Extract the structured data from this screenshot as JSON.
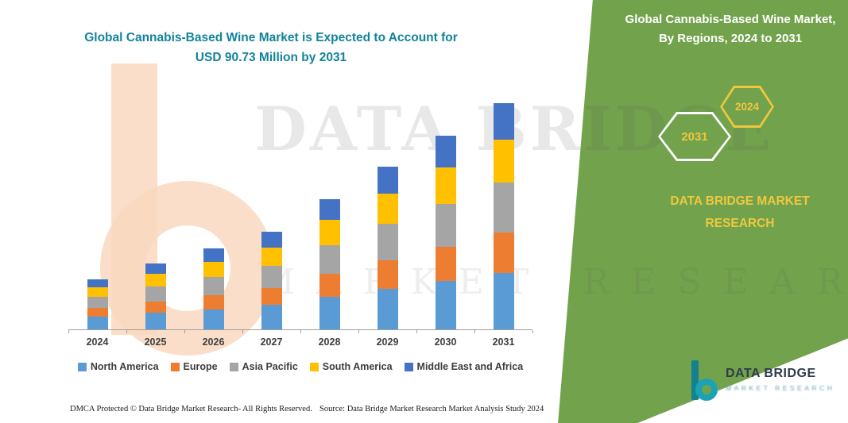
{
  "left": {
    "title_line1": "Global Cannabis-Based Wine Market is Expected to Account for",
    "title_line2": "USD 90.73 Million by 2031"
  },
  "chart_data": {
    "type": "bar",
    "stacked": true,
    "unit": "USD Million",
    "categories": [
      "2024",
      "2025",
      "2026",
      "2027",
      "2028",
      "2029",
      "2030",
      "2031"
    ],
    "series": [
      {
        "name": "North America",
        "color": "#5B9BD5",
        "values": [
          5.0,
          6.6,
          8.1,
          9.8,
          13.0,
          16.3,
          19.4,
          22.7
        ]
      },
      {
        "name": "Europe",
        "color": "#ED7D31",
        "values": [
          3.5,
          4.6,
          5.7,
          6.9,
          9.2,
          11.5,
          13.6,
          16.0
        ]
      },
      {
        "name": "Asia Pacific",
        "color": "#A5A5A5",
        "values": [
          4.5,
          5.9,
          7.2,
          8.7,
          11.6,
          14.4,
          17.2,
          20.0
        ]
      },
      {
        "name": "South America",
        "color": "#FFC000",
        "values": [
          3.8,
          5.0,
          6.1,
          7.4,
          9.9,
          12.3,
          14.7,
          17.2
        ]
      },
      {
        "name": "Middle East and Africa",
        "color": "#4472C4",
        "values": [
          3.2,
          4.4,
          5.3,
          6.4,
          8.5,
          10.6,
          12.6,
          14.8
        ]
      }
    ],
    "title": "Global Cannabis-Based Wine Market is Expected to Account for USD 90.73 Million by 2031",
    "xlabel": "",
    "ylabel": "",
    "ylim": [
      0,
      95
    ],
    "grid": false,
    "legend_position": "bottom"
  },
  "watermark": {
    "line1": "DATA BRIDGE",
    "line2": "MARKET RESEARCH"
  },
  "right_panel": {
    "title_line1": "Global Cannabis-Based Wine Market,",
    "title_line2": "By Regions, 2024 to 2031",
    "hex_back_label": "2031",
    "hex_front_label": "2024",
    "brand_line1": "DATA BRIDGE MARKET",
    "brand_line2": "RESEARCH",
    "colors": {
      "panel_green": "#72A24C",
      "accent_yellow": "#F2C63C",
      "title_teal": "#12839C"
    }
  },
  "footer": {
    "dmca": "DMCA Protected © Data Bridge Market Research-  All Rights Reserved.",
    "source": "Source: Data Bridge Market Research  Market Analysis Study 2024"
  },
  "logo": {
    "text": "DATA BRIDGE",
    "tagline": "MARKET RESEARCH"
  }
}
